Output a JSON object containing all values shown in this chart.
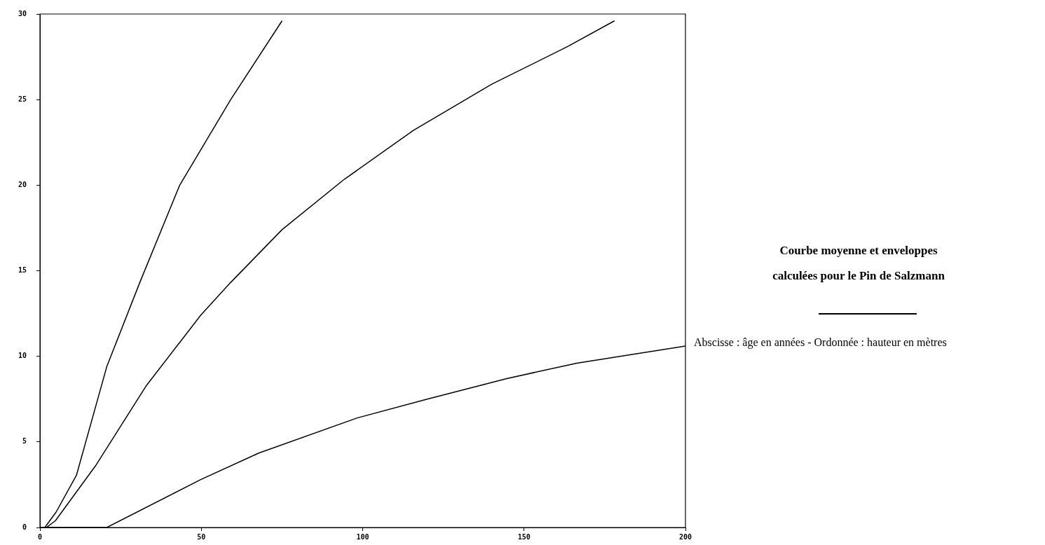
{
  "chart_data": {
    "type": "line",
    "title": "Courbe moyenne et enveloppes calculées pour le Pin de Salzmann",
    "annotations": [
      "Abscisse : âge en années - Ordonnée : hauteur en mètres"
    ],
    "xlim": [
      0,
      200
    ],
    "ylim": [
      0,
      30
    ],
    "xticks": [
      0,
      50,
      100,
      150,
      200
    ],
    "yticks": [
      0,
      5,
      10,
      15,
      20,
      25,
      30
    ],
    "grid": false,
    "legend": false,
    "marker": "none",
    "line_style": "solid",
    "series": [
      {
        "color": "#000000",
        "x": [
          1.5,
          5,
          11.3,
          20.7,
          30.9,
          43.3,
          59.1,
          75
        ],
        "values": [
          0,
          0.9,
          3.05,
          9.4,
          14.3,
          20,
          25,
          29.6
        ]
      },
      {
        "color": "#000000",
        "x": [
          2,
          4.8,
          17.2,
          33,
          49.8,
          59,
          75,
          94,
          115.7,
          140,
          163.5,
          178
        ],
        "values": [
          0,
          0.4,
          3.6,
          8.3,
          12.4,
          14.3,
          17.4,
          20.3,
          23.2,
          25.9,
          28.1,
          29.6
        ]
      },
      {
        "color": "#000000",
        "x": [
          0,
          20.7,
          49.8,
          67.8,
          98.3,
          120,
          144.6,
          166.3,
          200
        ],
        "values": [
          0,
          0,
          2.8,
          4.35,
          6.4,
          7.5,
          8.7,
          9.6,
          10.6
        ]
      }
    ]
  }
}
